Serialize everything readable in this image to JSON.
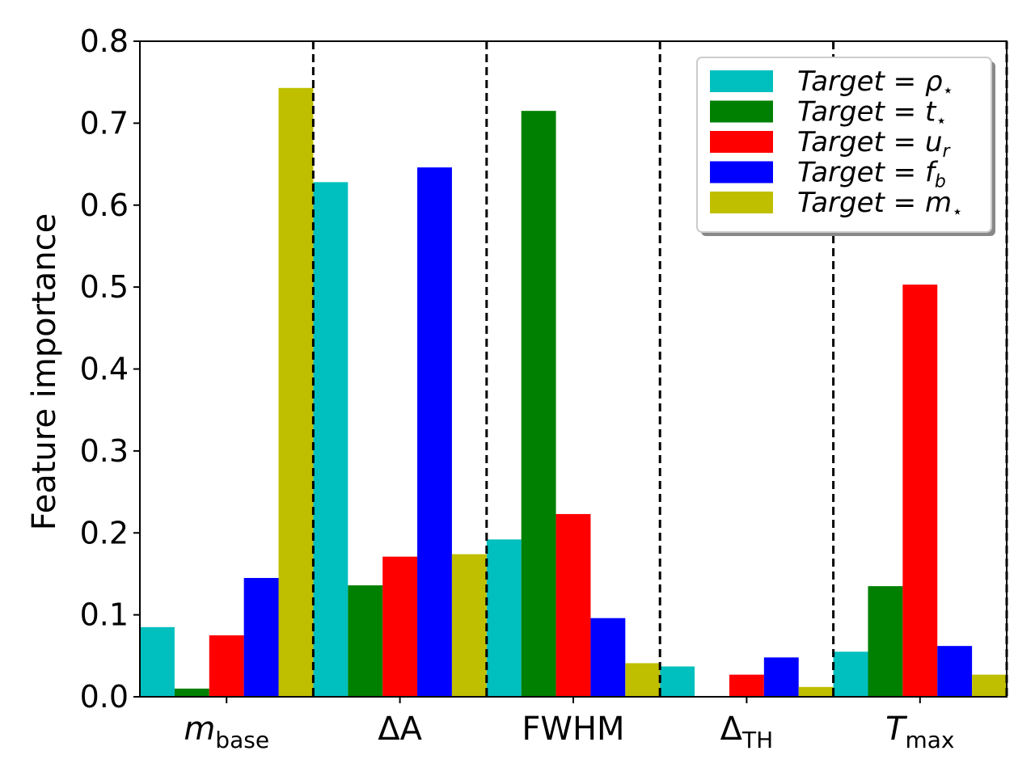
{
  "chart_data": {
    "type": "bar",
    "ylabel": "Feature importance",
    "ylim": [
      0,
      0.8
    ],
    "yticks": [
      "0.0",
      "0.1",
      "0.2",
      "0.3",
      "0.4",
      "0.5",
      "0.6",
      "0.7",
      "0.8"
    ],
    "categories": [
      {
        "main": "m",
        "sub": "base",
        "main_italic": true
      },
      {
        "main": "ΔA",
        "sub": "",
        "main_italic": false
      },
      {
        "main": "FWHM",
        "sub": "",
        "main_italic": false
      },
      {
        "main": "Δ",
        "sub": "TH",
        "main_italic": false
      },
      {
        "main": "T",
        "sub": "max",
        "main_italic": true
      }
    ],
    "series": [
      {
        "name": "Target = ρ⋆",
        "label_main": "Target = ρ",
        "label_sub": "⋆",
        "color": "#00bfbf",
        "values": [
          0.085,
          0.628,
          0.192,
          0.037,
          0.055
        ]
      },
      {
        "name": "Target = t⋆",
        "label_main": "Target = t",
        "label_sub": "⋆",
        "color": "#008000",
        "values": [
          0.01,
          0.136,
          0.715,
          0.001,
          0.135
        ]
      },
      {
        "name": "Target = ur",
        "label_main": "Target = u",
        "label_sub": "r",
        "color": "#ff0000",
        "values": [
          0.075,
          0.171,
          0.223,
          0.027,
          0.503
        ]
      },
      {
        "name": "Target = fb",
        "label_main": "Target = f",
        "label_sub": "b",
        "color": "#0000ff",
        "values": [
          0.145,
          0.646,
          0.096,
          0.048,
          0.062
        ]
      },
      {
        "name": "Target = m⋆",
        "label_main": "Target = m",
        "label_sub": "⋆",
        "color": "#bfbf00",
        "values": [
          0.743,
          0.174,
          0.041,
          0.012,
          0.027
        ]
      }
    ],
    "legend_position": "top-right",
    "grid": false,
    "group_separators": "dashed vertical lines between groups"
  }
}
